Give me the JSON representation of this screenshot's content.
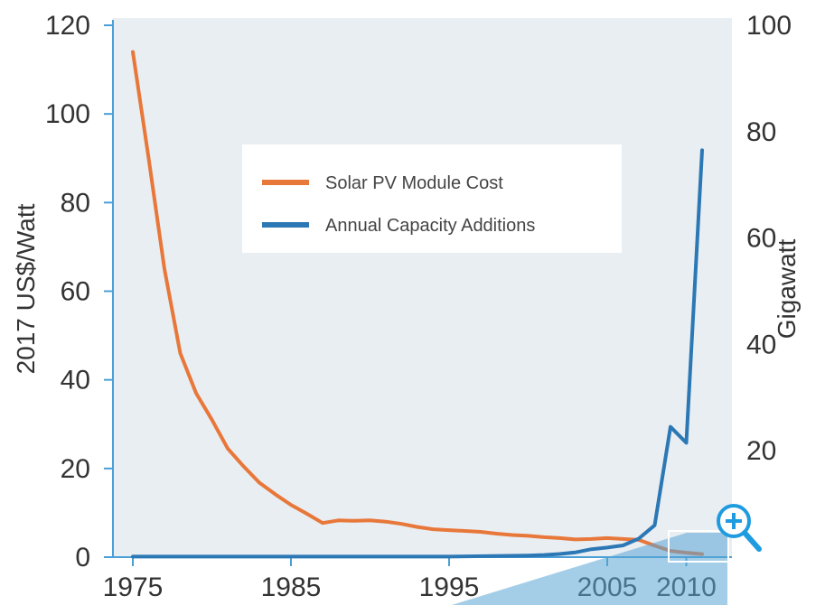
{
  "chart_data": {
    "type": "line",
    "title": "",
    "xlabel": "",
    "ylabel_left": "2017 US$/Watt",
    "ylabel_right": "Gigawatt",
    "xlim": [
      1975,
      2011
    ],
    "ylim_left": [
      0,
      120
    ],
    "ylim_right": [
      0,
      100
    ],
    "x_ticks": [
      "1975",
      "1985",
      "1995",
      "2005",
      "2010"
    ],
    "left_ticks": [
      "0",
      "20",
      "40",
      "60",
      "80",
      "100",
      "120"
    ],
    "right_ticks": [
      "20",
      "40",
      "60",
      "80",
      "100"
    ],
    "legend_position": "top-center",
    "grid": false,
    "colors": {
      "plot_background": "#e9eef3",
      "cost_line": "#e8773a",
      "capacity_line": "#2b78b5",
      "axis": "#4a9fd6"
    },
    "series": [
      {
        "name": "Solar PV Module Cost",
        "axis": "left",
        "color": "#e8773a",
        "x": [
          1975,
          1976,
          1977,
          1978,
          1979,
          1980,
          1981,
          1982,
          1983,
          1984,
          1985,
          1986,
          1987,
          1988,
          1989,
          1990,
          1991,
          1992,
          1993,
          1994,
          1995,
          1996,
          1997,
          1998,
          1999,
          2000,
          2001,
          2002,
          2003,
          2004,
          2005,
          2006,
          2007,
          2008,
          2009,
          2010,
          2011
        ],
        "values": [
          114,
          90,
          65,
          46,
          37,
          31,
          24.5,
          20.5,
          16.8,
          14.2,
          11.8,
          9.8,
          7.7,
          8.3,
          8.2,
          8.3,
          8.0,
          7.5,
          6.8,
          6.3,
          6.1,
          5.9,
          5.7,
          5.3,
          5.0,
          4.8,
          4.5,
          4.3,
          4.0,
          4.1,
          4.3,
          4.1,
          3.9,
          2.6,
          1.4,
          1.0,
          0.7
        ]
      },
      {
        "name": "Annual Capacity Additions",
        "axis": "right",
        "color": "#2b78b5",
        "x": [
          1975,
          1980,
          1985,
          1990,
          1995,
          2000,
          2001,
          2002,
          2003,
          2004,
          2005,
          2006,
          2007,
          2008,
          2009,
          2010,
          2011
        ],
        "values": [
          0.1,
          0.1,
          0.1,
          0.1,
          0.1,
          0.3,
          0.4,
          0.6,
          0.9,
          1.5,
          1.8,
          2.2,
          3.5,
          6.0,
          24.5,
          21.5,
          76.5
        ]
      }
    ]
  }
}
